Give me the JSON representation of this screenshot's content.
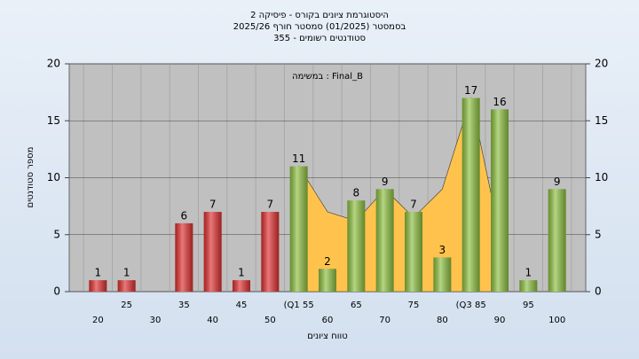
{
  "chart_data": {
    "type": "bar",
    "title": "היסטוגרמת ציונים בקורס - פיסיקה 2",
    "subtitle": "בסמסטר  (01/2025)  סמסטר חורף 2025/26",
    "subtitle2": "סטודנטים רשומים - 355",
    "annotation": "במשימה : Final_B",
    "x_label": "טווח ציונים",
    "y_label": "מספר סטודנטים",
    "categories": [
      "20",
      "25",
      "30",
      "35",
      "40",
      "45",
      "50",
      "(Q1 55",
      "60",
      "65",
      "70",
      "75",
      "80",
      "(Q3 85",
      "90",
      "95",
      "100"
    ],
    "values": [
      1,
      1,
      null,
      6,
      7,
      1,
      7,
      11,
      2,
      8,
      9,
      7,
      3,
      17,
      16,
      1,
      9
    ],
    "colors": [
      "#e03030",
      "#e03030",
      "#e03030",
      "#e03030",
      "#e03030",
      "#e03030",
      "#e03030",
      "#8dc040",
      "#8dc040",
      "#8dc040",
      "#8dc040",
      "#8dc040",
      "#8dc040",
      "#8dc040",
      "#8dc040",
      "#8dc040",
      "#8dc040"
    ],
    "area_values": [
      null,
      null,
      null,
      null,
      null,
      null,
      null,
      11,
      7,
      6.2,
      9,
      6.5,
      9,
      17,
      5,
      null,
      null
    ],
    "area_color": "#ffc34d",
    "ylim": [
      0,
      20
    ],
    "yticks": [
      0,
      5,
      10,
      15,
      20
    ],
    "y2lim": [
      0,
      20
    ],
    "y2ticks": [
      0,
      5,
      10,
      15,
      20
    ],
    "grid": true
  }
}
